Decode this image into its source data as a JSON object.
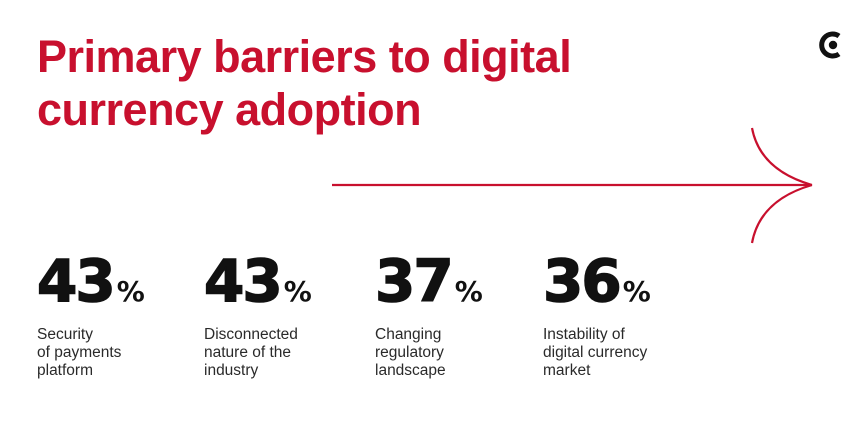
{
  "title": "Primary barriers to digital\ncurrency adoption",
  "brand_color": "#c8102e",
  "logo_icon": "brand-c-logo-icon",
  "chart_data": {
    "type": "table",
    "title": "Primary barriers to digital currency adoption",
    "unit": "%",
    "items": [
      {
        "value": 43,
        "value_text": "43",
        "label": "Security\nof payments\nplatform"
      },
      {
        "value": 43,
        "value_text": "43",
        "label": "Disconnected\nnature of the\nindustry"
      },
      {
        "value": 37,
        "value_text": "37",
        "label": "Changing\nregulatory\nlandscape"
      },
      {
        "value": 36,
        "value_text": "36",
        "label": "Instability of\ndigital currency\nmarket"
      }
    ]
  }
}
